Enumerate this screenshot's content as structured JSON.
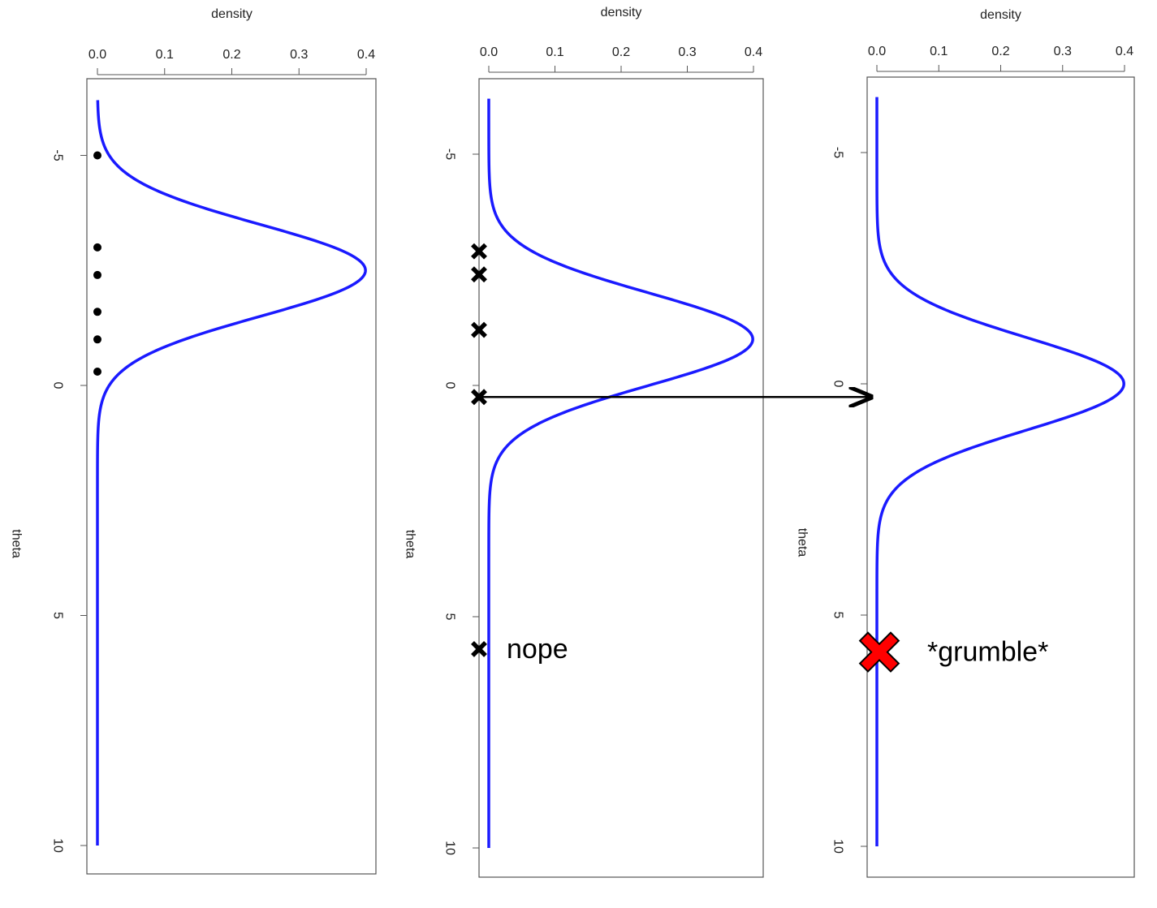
{
  "chart_data": [
    {
      "type": "line",
      "orientation": "rotated-90",
      "xlabel": "theta",
      "ylabel": "density",
      "xlim": [
        -6,
        10
      ],
      "ylim": [
        0,
        0.4
      ],
      "x_ticks": [
        "-5",
        "0",
        "5",
        "10"
      ],
      "y_ticks": [
        "0.0",
        "0.1",
        "0.2",
        "0.3",
        "0.4"
      ],
      "series": [
        {
          "mean": -2.5,
          "sd": 1,
          "color": "#1a1aff"
        }
      ],
      "points": {
        "marker": "dot",
        "color": "#000000",
        "x": [
          -5,
          -3,
          -2.4,
          -1.6,
          -1,
          -0.3
        ]
      },
      "annotations": []
    },
    {
      "type": "line",
      "orientation": "rotated-90",
      "xlabel": "theta",
      "ylabel": "density",
      "xlim": [
        -6,
        10
      ],
      "ylim": [
        0,
        0.4
      ],
      "x_ticks": [
        "-5",
        "0",
        "5",
        "10"
      ],
      "y_ticks": [
        "0.0",
        "0.1",
        "0.2",
        "0.3",
        "0.4"
      ],
      "series": [
        {
          "mean": -1,
          "sd": 1,
          "color": "#1a1aff"
        }
      ],
      "points": {
        "marker": "cross",
        "color": "#000000",
        "x": [
          -2.9,
          -2.4,
          -1.2,
          0.25,
          5.7
        ]
      },
      "annotations": [
        {
          "text": "nope",
          "x": 5.7
        }
      ]
    },
    {
      "type": "line",
      "orientation": "rotated-90",
      "xlabel": "theta",
      "ylabel": "density",
      "xlim": [
        -6,
        10
      ],
      "ylim": [
        0,
        0.4
      ],
      "x_ticks": [
        "-5",
        "0",
        "5",
        "10"
      ],
      "y_ticks": [
        "0.0",
        "0.1",
        "0.2",
        "0.3",
        "0.4"
      ],
      "series": [
        {
          "mean": 0,
          "sd": 1,
          "color": "#1a1aff"
        }
      ],
      "points": {
        "marker": "big-cross",
        "color": "#ff0000",
        "x": [
          5.8
        ]
      },
      "annotations": [
        {
          "text": "*grumble*",
          "x": 5.8
        }
      ]
    }
  ],
  "arrow": {
    "from_panel": 2,
    "to_panel": 3,
    "theta": 0.25,
    "color": "#000000"
  }
}
